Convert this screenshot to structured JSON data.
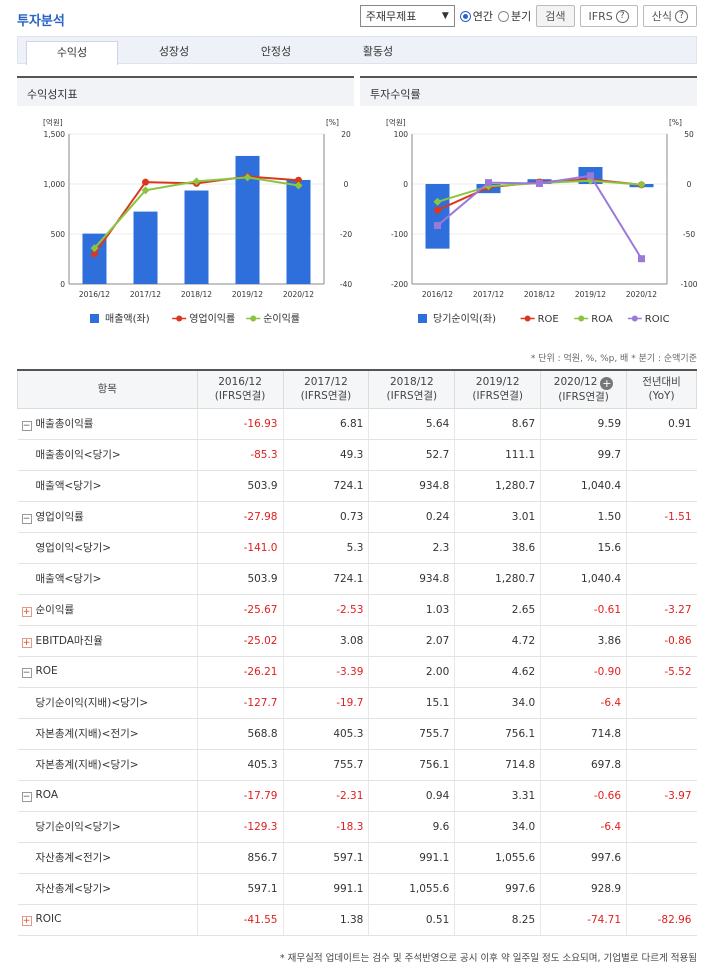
{
  "header": {
    "title": "투자분석",
    "select_value": "주재무제표",
    "radio_annual": "연간",
    "radio_quarter": "분기",
    "search_button": "검색",
    "ifrs_button": "IFRS",
    "formula_button": "산식",
    "help_glyph": "?"
  },
  "tabs": [
    "수익성",
    "성장성",
    "안정성",
    "활동성"
  ],
  "chart_left": {
    "panel_title": "수익성지표",
    "chart_data": {
      "type": "bar",
      "categories": [
        "2016/12",
        "2017/12",
        "2018/12",
        "2019/12",
        "2020/12"
      ],
      "series": [
        {
          "name": "매출액(좌)",
          "type": "bar",
          "axis": "left",
          "values": [
            503.9,
            724.1,
            934.8,
            1280.7,
            1040.4
          ]
        },
        {
          "name": "영업이익률",
          "type": "line",
          "axis": "right",
          "values": [
            -27.98,
            0.73,
            0.24,
            3.01,
            1.5
          ]
        },
        {
          "name": "순이익률",
          "type": "line",
          "axis": "right",
          "values": [
            -25.67,
            -2.53,
            1.03,
            2.65,
            -0.61
          ]
        }
      ],
      "left_unit": "[억원]",
      "right_unit": "[%]",
      "left_ticks": [
        "1,500",
        "1,000",
        "500",
        "0"
      ],
      "right_ticks": [
        "20",
        "0",
        "-20",
        "-40"
      ],
      "ylim_left": [
        0,
        1500
      ],
      "ylim_right": [
        -40,
        20
      ]
    }
  },
  "chart_right": {
    "panel_title": "투자수익률",
    "chart_data": {
      "type": "bar",
      "categories": [
        "2016/12",
        "2017/12",
        "2018/12",
        "2019/12",
        "2020/12"
      ],
      "series": [
        {
          "name": "당기순이익(좌)",
          "type": "bar",
          "axis": "left",
          "values": [
            -129.3,
            -18.3,
            9.6,
            34.0,
            -6.4
          ]
        },
        {
          "name": "ROE",
          "type": "line",
          "axis": "right",
          "values": [
            -26.21,
            -3.39,
            2.0,
            4.62,
            -0.9
          ]
        },
        {
          "name": "ROA",
          "type": "line",
          "axis": "right",
          "values": [
            -17.79,
            -2.31,
            0.94,
            3.31,
            -0.66
          ]
        },
        {
          "name": "ROIC",
          "type": "line",
          "axis": "right",
          "values": [
            -41.55,
            1.38,
            0.51,
            8.25,
            -74.71
          ]
        }
      ],
      "left_unit": "[억원]",
      "right_unit": "[%]",
      "left_ticks": [
        "100",
        "0",
        "-100",
        "-200"
      ],
      "right_ticks": [
        "50",
        "0",
        "-50",
        "-100"
      ],
      "ylim_left": [
        -200,
        100
      ],
      "ylim_right": [
        -100,
        50
      ]
    }
  },
  "colors": {
    "bar": "#2e6fdb",
    "op_margin": "#d9381e",
    "net_margin": "#8bc53f",
    "roe": "#d9381e",
    "roa": "#8bc53f",
    "roic": "#9b79d9"
  },
  "note": "* 단위 : 억원, %, %p, 배    * 분기 : 순액기준",
  "table": {
    "header_item": "항목",
    "columns": [
      {
        "year": "2016/12",
        "basis": "(IFRS연결)"
      },
      {
        "year": "2017/12",
        "basis": "(IFRS연결)"
      },
      {
        "year": "2018/12",
        "basis": "(IFRS연결)"
      },
      {
        "year": "2019/12",
        "basis": "(IFRS연결)"
      },
      {
        "year": "2020/12",
        "basis": "(IFRS연결)"
      }
    ],
    "yoy_header": "전년대비",
    "yoy_sub": "(YoY)",
    "rows": [
      {
        "label": "매출총이익률",
        "kind": "minus",
        "values": [
          "-16.93",
          "6.81",
          "5.64",
          "8.67",
          "9.59"
        ],
        "yoy": "0.91"
      },
      {
        "label": "매출총이익<당기>",
        "kind": "sub",
        "values": [
          "-85.3",
          "49.3",
          "52.7",
          "111.1",
          "99.7"
        ],
        "yoy": ""
      },
      {
        "label": "매출액<당기>",
        "kind": "sub",
        "values": [
          "503.9",
          "724.1",
          "934.8",
          "1,280.7",
          "1,040.4"
        ],
        "yoy": ""
      },
      {
        "label": "영업이익률",
        "kind": "minus",
        "values": [
          "-27.98",
          "0.73",
          "0.24",
          "3.01",
          "1.50"
        ],
        "yoy": "-1.51"
      },
      {
        "label": "영업이익<당기>",
        "kind": "sub",
        "values": [
          "-141.0",
          "5.3",
          "2.3",
          "38.6",
          "15.6"
        ],
        "yoy": ""
      },
      {
        "label": "매출액<당기>",
        "kind": "sub",
        "values": [
          "503.9",
          "724.1",
          "934.8",
          "1,280.7",
          "1,040.4"
        ],
        "yoy": ""
      },
      {
        "label": "순이익률",
        "kind": "plus",
        "values": [
          "-25.67",
          "-2.53",
          "1.03",
          "2.65",
          "-0.61"
        ],
        "yoy": "-3.27"
      },
      {
        "label": "EBITDA마진율",
        "kind": "plus",
        "values": [
          "-25.02",
          "3.08",
          "2.07",
          "4.72",
          "3.86"
        ],
        "yoy": "-0.86"
      },
      {
        "label": "ROE",
        "kind": "minus",
        "values": [
          "-26.21",
          "-3.39",
          "2.00",
          "4.62",
          "-0.90"
        ],
        "yoy": "-5.52"
      },
      {
        "label": "당기순이익(지배)<당기>",
        "kind": "sub",
        "values": [
          "-127.7",
          "-19.7",
          "15.1",
          "34.0",
          "-6.4"
        ],
        "yoy": ""
      },
      {
        "label": "자본총계(지배)<전기>",
        "kind": "sub",
        "values": [
          "568.8",
          "405.3",
          "755.7",
          "756.1",
          "714.8"
        ],
        "yoy": ""
      },
      {
        "label": "자본총계(지배)<당기>",
        "kind": "sub",
        "values": [
          "405.3",
          "755.7",
          "756.1",
          "714.8",
          "697.8"
        ],
        "yoy": ""
      },
      {
        "label": "ROA",
        "kind": "minus",
        "values": [
          "-17.79",
          "-2.31",
          "0.94",
          "3.31",
          "-0.66"
        ],
        "yoy": "-3.97"
      },
      {
        "label": "당기순이익<당기>",
        "kind": "sub",
        "values": [
          "-129.3",
          "-18.3",
          "9.6",
          "34.0",
          "-6.4"
        ],
        "yoy": ""
      },
      {
        "label": "자산총계<전기>",
        "kind": "sub",
        "values": [
          "856.7",
          "597.1",
          "991.1",
          "1,055.6",
          "997.6"
        ],
        "yoy": ""
      },
      {
        "label": "자산총계<당기>",
        "kind": "sub",
        "values": [
          "597.1",
          "991.1",
          "1,055.6",
          "997.6",
          "928.9"
        ],
        "yoy": ""
      },
      {
        "label": "ROIC",
        "kind": "plus",
        "values": [
          "-41.55",
          "1.38",
          "0.51",
          "8.25",
          "-74.71"
        ],
        "yoy": "-82.96"
      }
    ]
  },
  "footnote": "* 재무실적 업데이트는 검수 및 주석반영으로 공시 이후 약 일주일 정도 소요되며, 기업별로 다르게 적용됨"
}
